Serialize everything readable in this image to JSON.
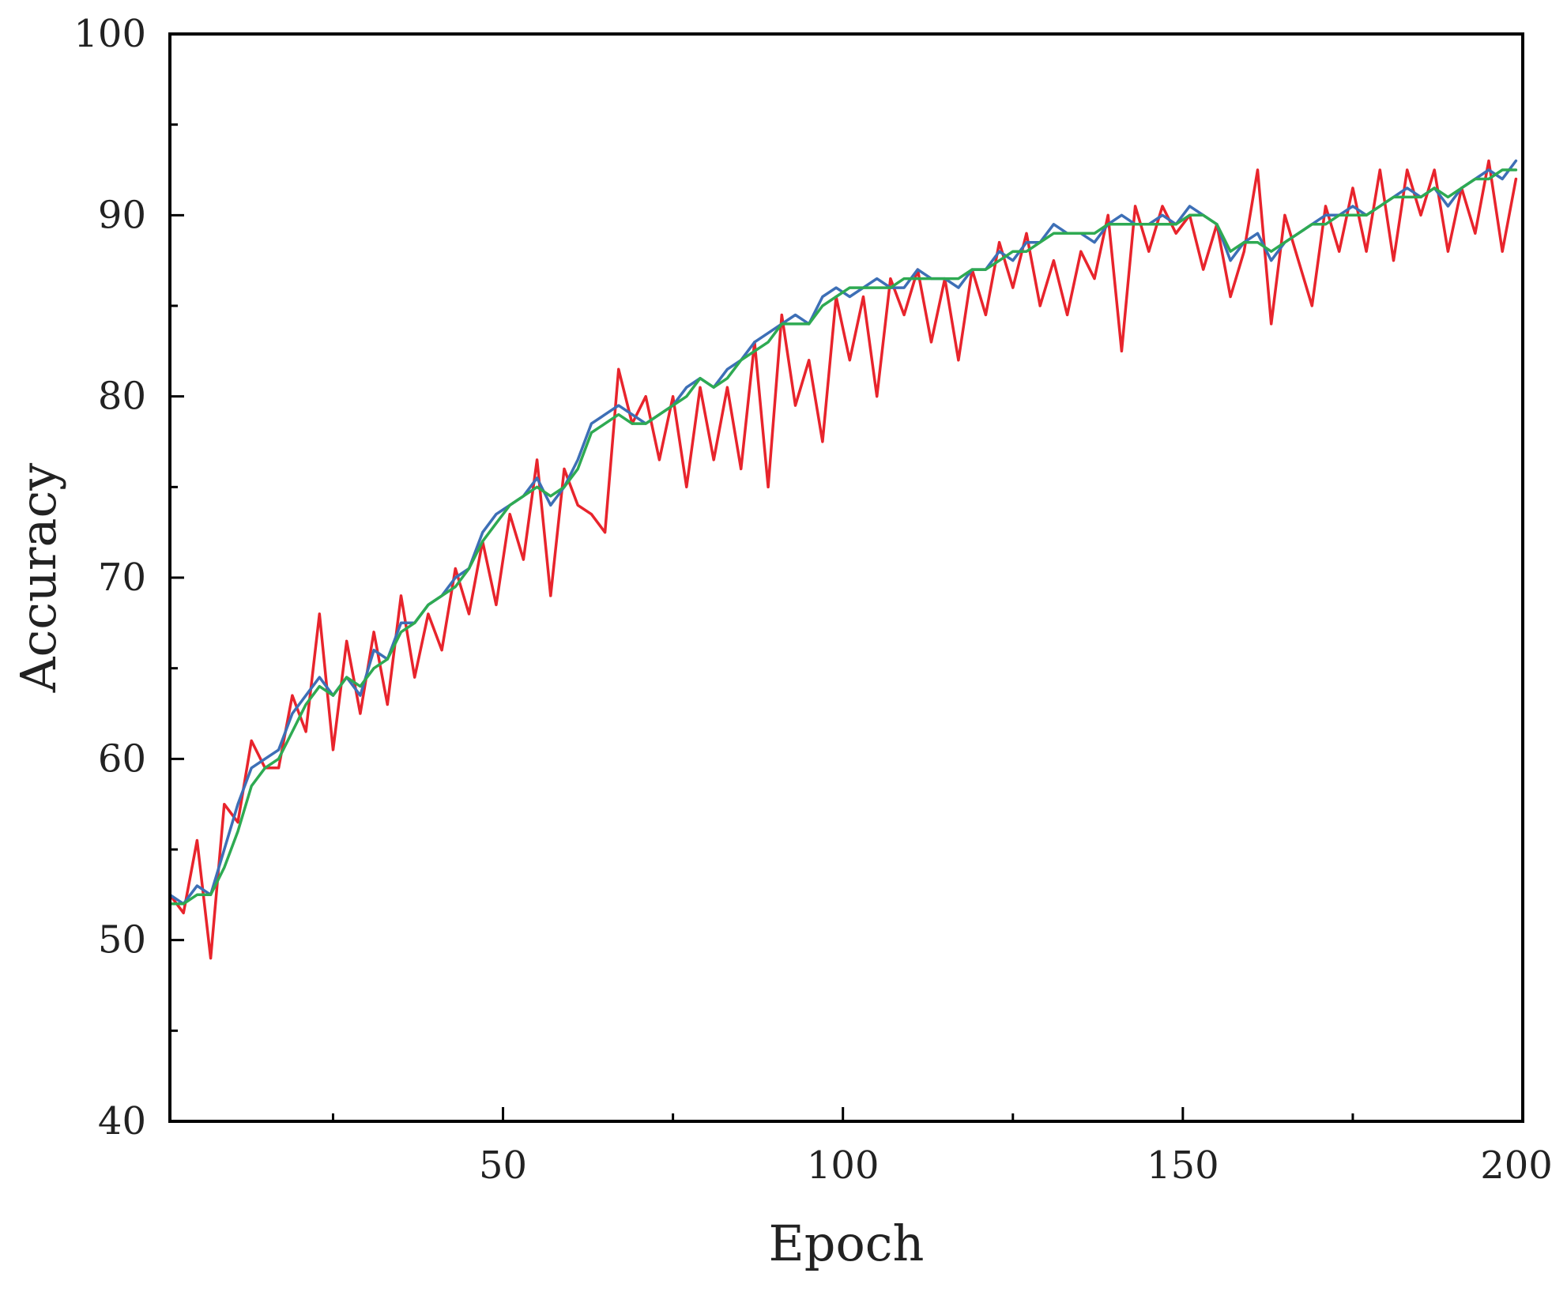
{
  "chart_data": {
    "type": "line",
    "title": "",
    "xlabel": "Epoch",
    "ylabel": "Accuracy",
    "xlim": [
      1,
      200
    ],
    "ylim": [
      40,
      100
    ],
    "x_ticks": [
      50,
      100,
      150,
      200
    ],
    "x_minor_ticks": [
      25,
      75,
      125,
      175
    ],
    "y_ticks": [
      40,
      50,
      60,
      70,
      80,
      90,
      100
    ],
    "y_minor_ticks": [
      45,
      55,
      65,
      75,
      85,
      95
    ],
    "grid": false,
    "legend": "none",
    "x": [
      1,
      3,
      5,
      7,
      9,
      11,
      13,
      15,
      17,
      19,
      21,
      23,
      25,
      27,
      29,
      31,
      33,
      35,
      37,
      39,
      41,
      43,
      45,
      47,
      49,
      51,
      53,
      55,
      57,
      59,
      61,
      63,
      65,
      67,
      69,
      71,
      73,
      75,
      77,
      79,
      81,
      83,
      85,
      87,
      89,
      91,
      93,
      95,
      97,
      99,
      101,
      103,
      105,
      107,
      109,
      111,
      113,
      115,
      117,
      119,
      121,
      123,
      125,
      127,
      129,
      131,
      133,
      135,
      137,
      139,
      141,
      143,
      145,
      147,
      149,
      151,
      153,
      155,
      157,
      159,
      161,
      163,
      165,
      167,
      169,
      171,
      173,
      175,
      177,
      179,
      181,
      183,
      185,
      187,
      189,
      191,
      193,
      195,
      197,
      199
    ],
    "series": [
      {
        "color": "#e8242c",
        "values": [
          52.5,
          51.5,
          55.5,
          49.0,
          57.5,
          56.5,
          61.0,
          59.5,
          59.5,
          63.5,
          61.5,
          68.0,
          60.5,
          66.5,
          62.5,
          67.0,
          63.0,
          69.0,
          64.5,
          68.0,
          66.0,
          70.5,
          68.0,
          72.0,
          68.5,
          73.5,
          71.0,
          76.5,
          69.0,
          76.0,
          74.0,
          73.5,
          72.5,
          81.5,
          78.5,
          80.0,
          76.5,
          80.0,
          75.0,
          80.5,
          76.5,
          80.5,
          76.0,
          83.0,
          75.0,
          84.5,
          79.5,
          82.0,
          77.5,
          85.5,
          82.0,
          85.5,
          80.0,
          86.5,
          84.5,
          87.0,
          83.0,
          86.5,
          82.0,
          87.0,
          84.5,
          88.5,
          86.0,
          89.0,
          85.0,
          87.5,
          84.5,
          88.0,
          86.5,
          90.0,
          82.5,
          90.5,
          88.0,
          90.5,
          89.0,
          90.0,
          87.0,
          89.5,
          85.5,
          88.0,
          92.5,
          84.0,
          90.0,
          87.5,
          85.0,
          90.5,
          88.0,
          91.5,
          88.0,
          92.5,
          87.5,
          92.5,
          90.0,
          92.5,
          88.0,
          91.5,
          89.0,
          93.0,
          88.0,
          92.0
        ]
      },
      {
        "color": "#3d6fb6",
        "values": [
          52.5,
          52.0,
          53.0,
          52.5,
          55.0,
          57.5,
          59.5,
          60.0,
          60.5,
          62.5,
          63.5,
          64.5,
          63.5,
          64.5,
          63.5,
          66.0,
          65.5,
          67.5,
          67.5,
          68.5,
          69.0,
          70.0,
          70.5,
          72.5,
          73.5,
          74.0,
          74.5,
          75.5,
          74.0,
          75.0,
          76.5,
          78.5,
          79.0,
          79.5,
          79.0,
          78.5,
          79.0,
          79.5,
          80.5,
          81.0,
          80.5,
          81.5,
          82.0,
          83.0,
          83.5,
          84.0,
          84.5,
          84.0,
          85.5,
          86.0,
          85.5,
          86.0,
          86.5,
          86.0,
          86.0,
          87.0,
          86.5,
          86.5,
          86.0,
          87.0,
          87.0,
          88.0,
          87.5,
          88.5,
          88.5,
          89.5,
          89.0,
          89.0,
          88.5,
          89.5,
          90.0,
          89.5,
          89.5,
          90.0,
          89.5,
          90.5,
          90.0,
          89.5,
          87.5,
          88.5,
          89.0,
          87.5,
          88.5,
          89.0,
          89.5,
          90.0,
          90.0,
          90.5,
          90.0,
          90.5,
          91.0,
          91.5,
          91.0,
          91.5,
          90.5,
          91.5,
          92.0,
          92.5,
          92.0,
          93.0
        ]
      },
      {
        "color": "#2eaa52",
        "values": [
          52.0,
          52.0,
          52.5,
          52.5,
          54.0,
          56.0,
          58.5,
          59.5,
          60.0,
          61.5,
          63.0,
          64.0,
          63.5,
          64.5,
          64.0,
          65.0,
          65.5,
          67.0,
          67.5,
          68.5,
          69.0,
          69.5,
          70.5,
          72.0,
          73.0,
          74.0,
          74.5,
          75.0,
          74.5,
          75.0,
          76.0,
          78.0,
          78.5,
          79.0,
          78.5,
          78.5,
          79.0,
          79.5,
          80.0,
          81.0,
          80.5,
          81.0,
          82.0,
          82.5,
          83.0,
          84.0,
          84.0,
          84.0,
          85.0,
          85.5,
          86.0,
          86.0,
          86.0,
          86.0,
          86.5,
          86.5,
          86.5,
          86.5,
          86.5,
          87.0,
          87.0,
          87.5,
          88.0,
          88.0,
          88.5,
          89.0,
          89.0,
          89.0,
          89.0,
          89.5,
          89.5,
          89.5,
          89.5,
          89.5,
          89.5,
          90.0,
          90.0,
          89.5,
          88.0,
          88.5,
          88.5,
          88.0,
          88.5,
          89.0,
          89.5,
          89.5,
          90.0,
          90.0,
          90.0,
          90.5,
          91.0,
          91.0,
          91.0,
          91.5,
          91.0,
          91.5,
          92.0,
          92.0,
          92.5,
          92.5
        ]
      }
    ]
  }
}
